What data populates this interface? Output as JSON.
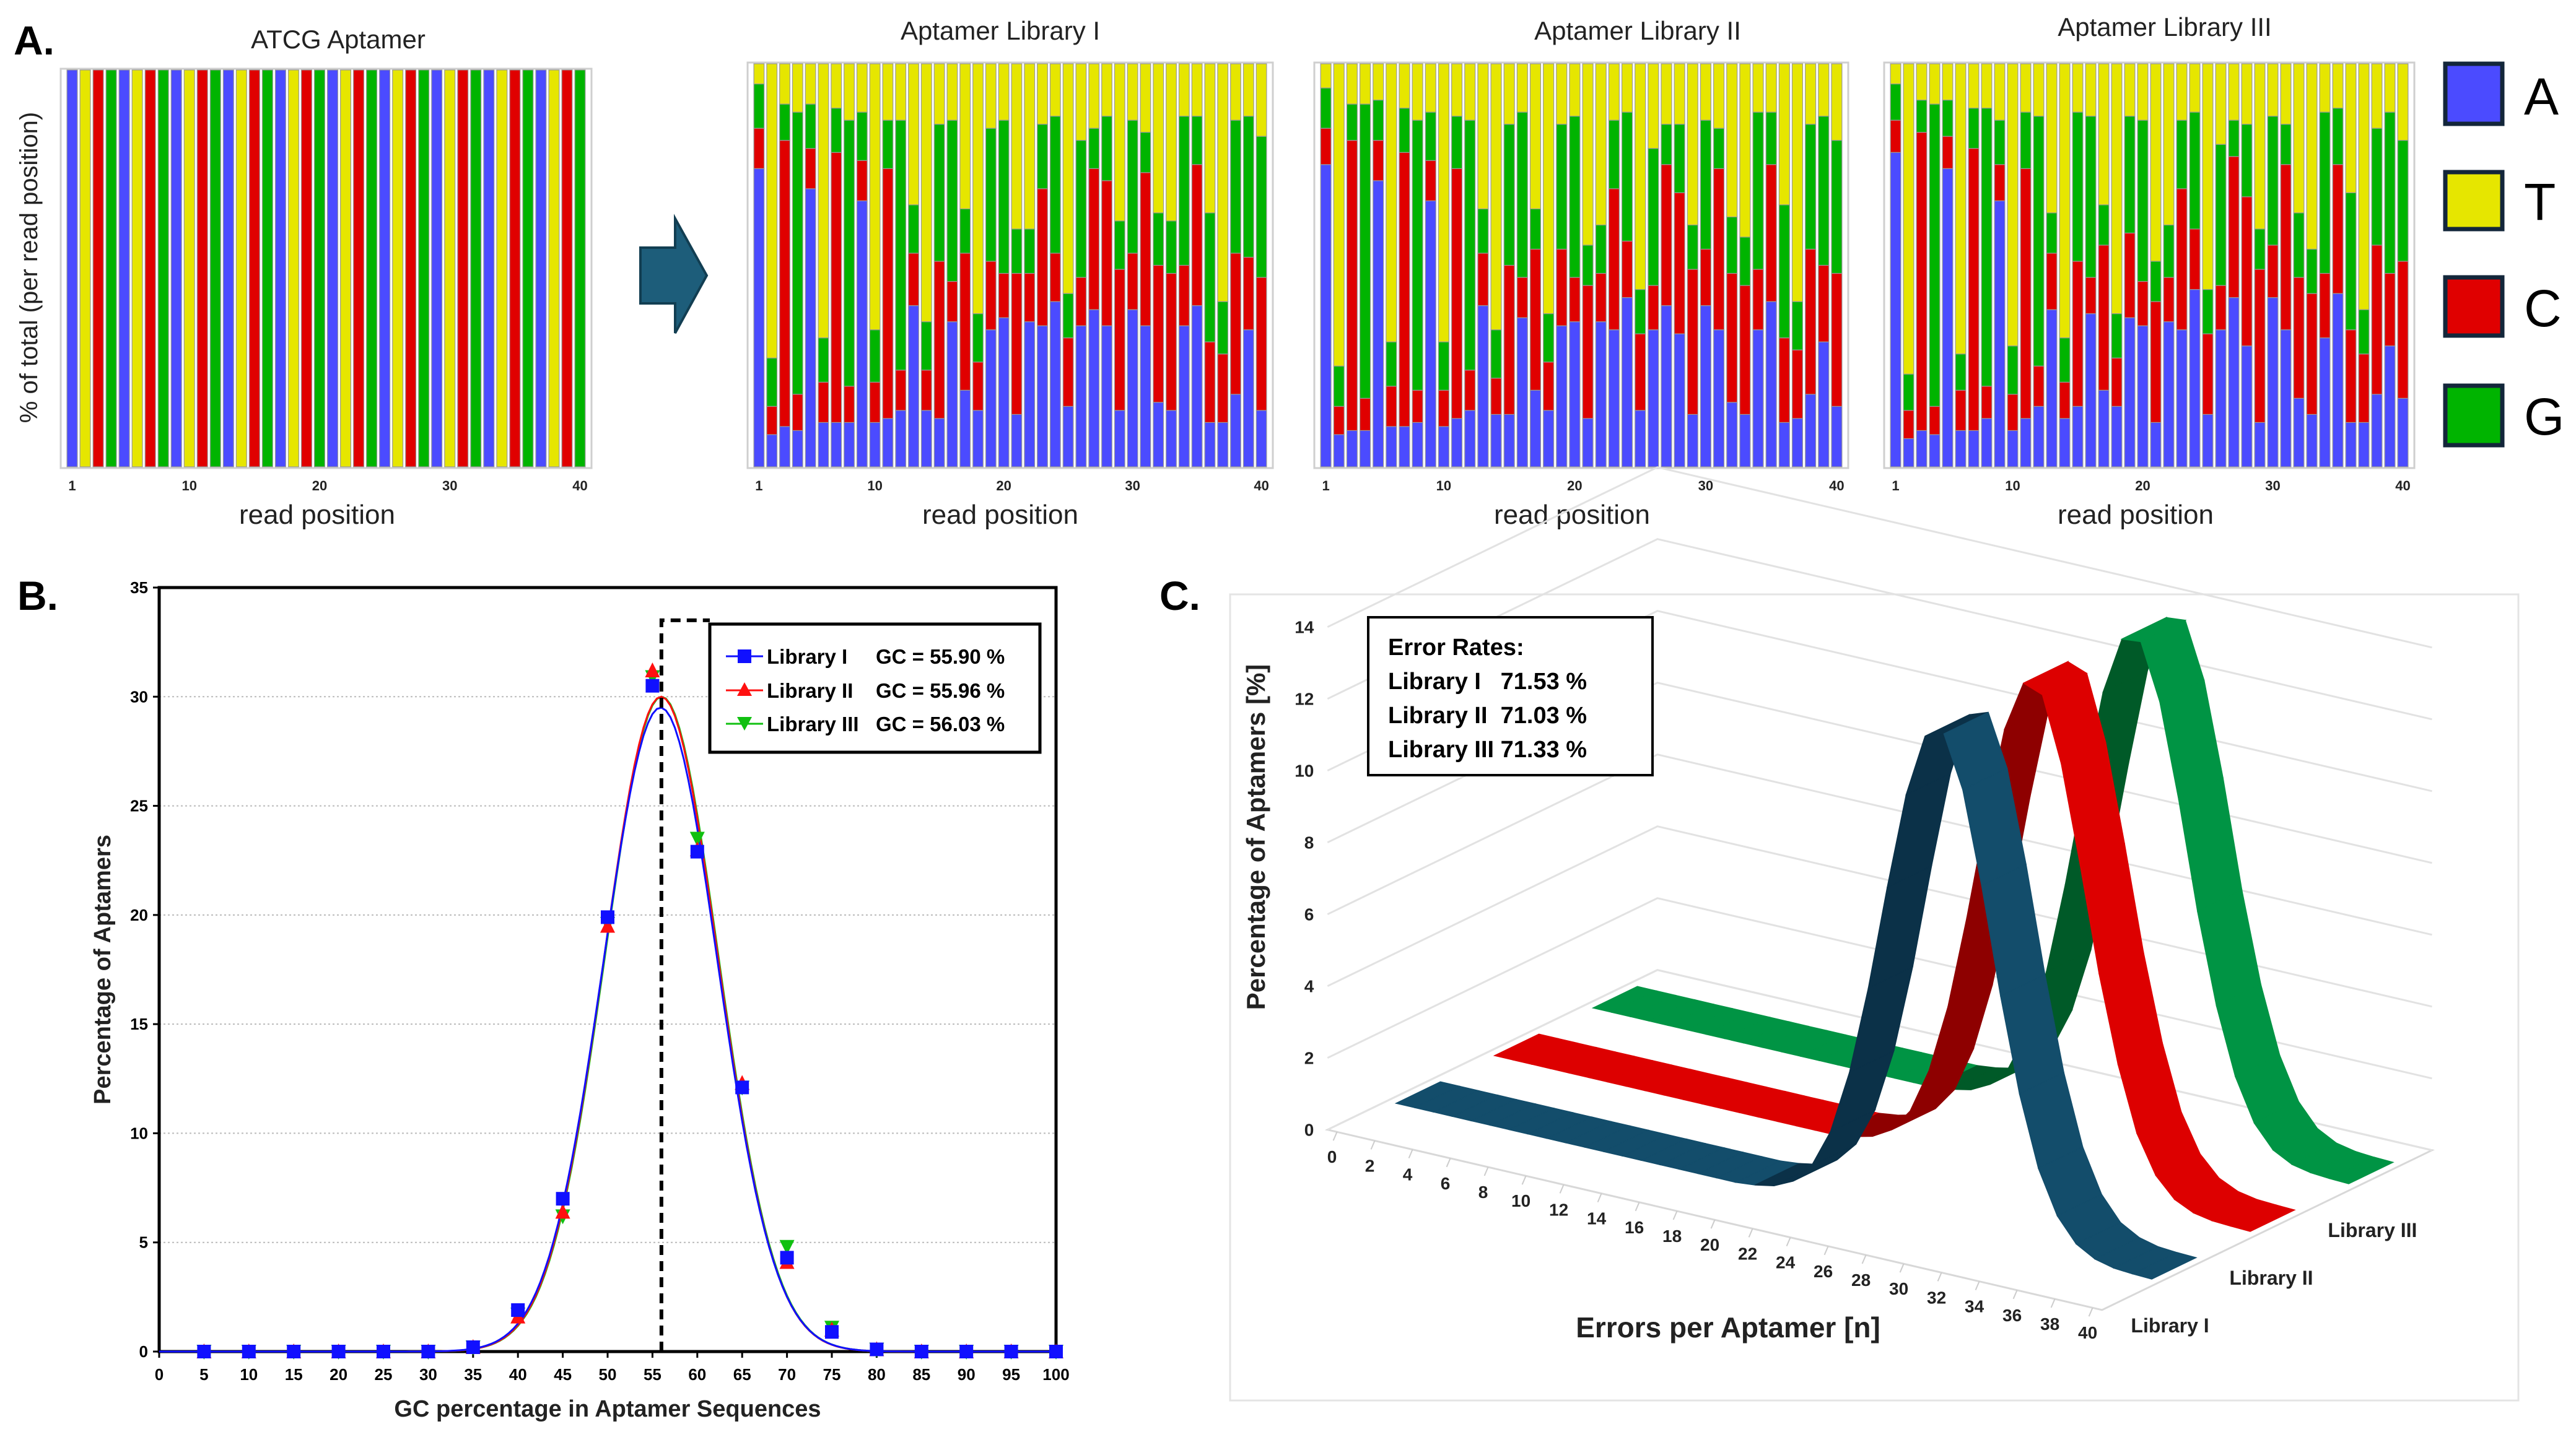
{
  "figure_labels": {
    "a": "A.",
    "b": "B.",
    "c": "C."
  },
  "base_colors": {
    "A": "#4b4bff",
    "T": "#e6e600",
    "C": "#e00000",
    "G": "#00b400"
  },
  "legend_a": [
    "A",
    "T",
    "C",
    "G"
  ],
  "chart_data": [
    {
      "type": "bar",
      "stacked": true,
      "title": "ATCG Aptamer",
      "xlabel": "read position",
      "ylabel": "% of total (per read position)",
      "xticks": [
        1,
        10,
        20,
        30,
        40
      ],
      "stack_order": [
        "A",
        "C",
        "G",
        "T"
      ],
      "series": {
        "A": [
          1,
          0,
          0,
          0,
          1,
          0,
          0,
          0,
          1,
          0,
          0,
          0,
          1,
          0,
          0,
          0,
          1,
          0,
          0,
          0,
          1,
          0,
          0,
          0,
          1,
          0,
          0,
          0,
          1,
          0,
          0,
          0,
          1,
          0,
          0,
          0,
          1,
          0,
          0,
          0
        ],
        "T": [
          0,
          1,
          0,
          0,
          0,
          1,
          0,
          0,
          0,
          1,
          0,
          0,
          0,
          1,
          0,
          0,
          0,
          1,
          0,
          0,
          0,
          1,
          0,
          0,
          0,
          1,
          0,
          0,
          0,
          1,
          0,
          0,
          0,
          1,
          0,
          0,
          0,
          1,
          0,
          0
        ],
        "C": [
          0,
          0,
          1,
          0,
          0,
          0,
          1,
          0,
          0,
          0,
          1,
          0,
          0,
          0,
          1,
          0,
          0,
          0,
          1,
          0,
          0,
          0,
          1,
          0,
          0,
          0,
          1,
          0,
          0,
          0,
          1,
          0,
          0,
          0,
          1,
          0,
          0,
          0,
          1,
          0
        ],
        "G": [
          0,
          0,
          0,
          1,
          0,
          0,
          0,
          1,
          0,
          0,
          0,
          1,
          0,
          0,
          0,
          1,
          0,
          0,
          0,
          1,
          0,
          0,
          0,
          1,
          0,
          0,
          0,
          1,
          0,
          0,
          0,
          1,
          0,
          0,
          0,
          1,
          0,
          0,
          0,
          1
        ]
      }
    },
    {
      "type": "bar",
      "stacked": true,
      "title": "Aptamer Library I",
      "xlabel": "read position",
      "xticks": [
        1,
        10,
        20,
        30,
        40
      ],
      "unit": "%",
      "stack_order": [
        "A",
        "C",
        "G",
        "T"
      ],
      "series": {
        "A": [
          74,
          8,
          10,
          9,
          69,
          11,
          11,
          11,
          66,
          11,
          12,
          14,
          40,
          14,
          12,
          36,
          19,
          14,
          34,
          37,
          13,
          36,
          35,
          41,
          15,
          35,
          39,
          35,
          14,
          39,
          35,
          16,
          14,
          35,
          40,
          11,
          11,
          18,
          34,
          14
        ],
        "C": [
          10,
          7,
          71,
          9,
          10,
          10,
          67,
          9,
          10,
          10,
          62,
          10,
          13,
          10,
          39,
          10,
          34,
          12,
          17,
          11,
          35,
          12,
          34,
          12,
          17,
          12,
          35,
          36,
          35,
          14,
          38,
          34,
          34,
          15,
          35,
          20,
          17,
          35,
          18,
          33
        ],
        "G": [
          11,
          12,
          9,
          70,
          11,
          11,
          11,
          66,
          12,
          13,
          12,
          62,
          12,
          12,
          34,
          40,
          11,
          12,
          33,
          38,
          11,
          11,
          16,
          34,
          11,
          34,
          10,
          16,
          12,
          33,
          10,
          13,
          13,
          37,
          12,
          32,
          13,
          33,
          35,
          35
        ],
        "T": [
          5,
          73,
          10,
          12,
          10,
          68,
          11,
          14,
          12,
          66,
          14,
          14,
          35,
          64,
          15,
          14,
          36,
          62,
          16,
          14,
          41,
          41,
          15,
          13,
          57,
          19,
          16,
          13,
          39,
          14,
          17,
          37,
          39,
          13,
          13,
          37,
          59,
          14,
          13,
          18
        ]
      }
    },
    {
      "type": "bar",
      "stacked": true,
      "title": "Aptamer Library II",
      "xlabel": "read position",
      "xticks": [
        1,
        10,
        20,
        30,
        40
      ],
      "unit": "%",
      "stack_order": [
        "A",
        "C",
        "G",
        "T"
      ],
      "series": {
        "A": [
          75,
          8,
          9,
          9,
          71,
          10,
          10,
          11,
          66,
          10,
          12,
          14,
          40,
          13,
          13,
          37,
          19,
          14,
          35,
          36,
          12,
          36,
          34,
          42,
          14,
          34,
          40,
          33,
          13,
          40,
          34,
          16,
          13,
          34,
          41,
          11,
          12,
          18,
          31,
          15
        ],
        "C": [
          9,
          7,
          72,
          8,
          10,
          10,
          68,
          8,
          10,
          9,
          62,
          10,
          13,
          9,
          37,
          10,
          35,
          12,
          19,
          11,
          33,
          12,
          35,
          14,
          19,
          11,
          35,
          35,
          36,
          14,
          40,
          32,
          32,
          15,
          34,
          21,
          17,
          36,
          19,
          33
        ],
        "G": [
          10,
          10,
          9,
          73,
          10,
          11,
          11,
          67,
          12,
          12,
          13,
          62,
          11,
          12,
          35,
          41,
          10,
          12,
          31,
          40,
          10,
          12,
          17,
          32,
          11,
          34,
          10,
          17,
          11,
          32,
          10,
          14,
          12,
          39,
          13,
          33,
          12,
          31,
          37,
          33
        ],
        "T": [
          6,
          75,
          10,
          10,
          9,
          69,
          11,
          14,
          12,
          69,
          13,
          14,
          36,
          66,
          15,
          12,
          36,
          62,
          15,
          13,
          45,
          40,
          14,
          12,
          56,
          21,
          15,
          15,
          40,
          14,
          16,
          38,
          43,
          12,
          12,
          35,
          59,
          15,
          13,
          19
        ]
      }
    },
    {
      "type": "bar",
      "stacked": true,
      "title": "Aptamer Library III",
      "xlabel": "read position",
      "xticks": [
        1,
        10,
        20,
        30,
        40
      ],
      "unit": "%",
      "stack_order": [
        "A",
        "C",
        "G",
        "T"
      ],
      "series": {
        "A": [
          78,
          7,
          9,
          8,
          74,
          9,
          9,
          12,
          66,
          9,
          12,
          15,
          39,
          12,
          15,
          38,
          19,
          15,
          37,
          35,
          11,
          36,
          34,
          44,
          13,
          34,
          42,
          30,
          11,
          42,
          34,
          17,
          13,
          32,
          43,
          11,
          11,
          18,
          30,
          17
        ],
        "C": [
          8,
          7,
          74,
          7,
          8,
          10,
          70,
          8,
          9,
          9,
          62,
          10,
          14,
          9,
          36,
          9,
          36,
          12,
          21,
          11,
          30,
          11,
          35,
          15,
          20,
          11,
          35,
          37,
          38,
          13,
          41,
          30,
          30,
          16,
          32,
          23,
          17,
          37,
          18,
          34
        ],
        "G": [
          9,
          9,
          8,
          75,
          9,
          9,
          10,
          69,
          11,
          12,
          14,
          62,
          10,
          11,
          37,
          40,
          10,
          11,
          29,
          40,
          10,
          13,
          17,
          29,
          11,
          35,
          9,
          18,
          10,
          32,
          10,
          16,
          11,
          40,
          14,
          34,
          11,
          29,
          40,
          30
        ],
        "T": [
          5,
          77,
          9,
          10,
          9,
          72,
          11,
          11,
          14,
          70,
          12,
          13,
          37,
          68,
          12,
          13,
          35,
          62,
          13,
          14,
          49,
          40,
          14,
          12,
          56,
          20,
          14,
          15,
          41,
          13,
          15,
          37,
          46,
          12,
          11,
          32,
          61,
          16,
          12,
          19
        ]
      }
    },
    {
      "type": "scatter",
      "xlabel": "GC percentage in Aptamer Sequences",
      "ylabel": "Percentage of Aptamers",
      "xlim": [
        0,
        100
      ],
      "ylim": [
        0,
        35
      ],
      "xticks": [
        0,
        5,
        10,
        15,
        20,
        25,
        30,
        35,
        40,
        45,
        50,
        55,
        60,
        65,
        70,
        75,
        80,
        85,
        90,
        95,
        100
      ],
      "yticks": [
        0,
        5,
        10,
        15,
        20,
        25,
        30,
        35
      ],
      "grid": true,
      "legend_position": "top-right",
      "mean_line_x": 56,
      "x": [
        5,
        10,
        15,
        20,
        25,
        30,
        35,
        40,
        45,
        50,
        55,
        60,
        65,
        70,
        75,
        80,
        85,
        90,
        95,
        100
      ],
      "series": [
        {
          "name": "Library I",
          "gc_label": "GC = 55.90 %",
          "color": "#1010ff",
          "marker": "square",
          "values": [
            0,
            0,
            0,
            0,
            0,
            0,
            0.2,
            1.9,
            7.0,
            19.9,
            30.5,
            22.9,
            12.1,
            4.3,
            0.9,
            0.1,
            0,
            0,
            0,
            0
          ],
          "fit": {
            "mean": 55.9,
            "amplitude": 29.5,
            "sd": 6.35
          }
        },
        {
          "name": "Library II",
          "gc_label": "GC = 55.96 %",
          "color": "#ff1010",
          "marker": "triangle-up",
          "values": [
            0,
            0,
            0,
            0,
            0,
            0,
            0.2,
            1.6,
            6.4,
            19.5,
            31.2,
            23.0,
            12.3,
            4.1,
            1.0,
            0.1,
            0,
            0,
            0,
            0
          ],
          "fit": {
            "mean": 55.96,
            "amplitude": 30.0,
            "sd": 6.3
          }
        },
        {
          "name": "Library III",
          "gc_label": "GC = 56.03 %",
          "color": "#10c010",
          "marker": "triangle-down",
          "values": [
            0,
            0,
            0,
            0,
            0,
            0,
            0.2,
            1.7,
            6.2,
            19.6,
            30.9,
            23.5,
            12.1,
            4.8,
            1.1,
            0.1,
            0,
            0,
            0,
            0
          ],
          "fit": {
            "mean": 56.03,
            "amplitude": 30.0,
            "sd": 6.3
          }
        }
      ]
    },
    {
      "type": "area",
      "variant": "3d-ribbon",
      "xlabel": "Errors per Aptamer [n]",
      "ylabel": "Percentage of Aptamers [%]",
      "xlim": [
        0,
        40
      ],
      "ylim": [
        0,
        14
      ],
      "xticks": [
        0,
        2,
        4,
        6,
        8,
        10,
        12,
        14,
        16,
        18,
        20,
        22,
        24,
        26,
        28,
        30,
        32,
        34,
        36,
        38,
        40
      ],
      "yticks": [
        0,
        2,
        4,
        6,
        8,
        10,
        12,
        14
      ],
      "annotation": {
        "title": "Error Rates:",
        "lines": [
          "Library I   71.53 %",
          "Library II  71.03 %",
          "Library III 71.33 %"
        ]
      },
      "x": [
        0,
        1,
        2,
        3,
        4,
        5,
        6,
        7,
        8,
        9,
        10,
        11,
        12,
        13,
        14,
        15,
        16,
        17,
        18,
        19,
        20,
        21,
        22,
        23,
        24,
        25,
        26,
        27,
        28,
        29,
        30,
        31,
        32,
        33,
        34,
        35,
        36,
        37,
        38,
        39,
        40
      ],
      "series": [
        {
          "name": "Library I",
          "color": "#134d6b",
          "dark": "#0b3148",
          "values": [
            0,
            0,
            0,
            0,
            0,
            0,
            0,
            0,
            0,
            0,
            0,
            0,
            0,
            0,
            0,
            0,
            0,
            0,
            0,
            0.05,
            0.15,
            0.4,
            0.96,
            2.03,
            3.8,
            6.27,
            9.2,
            11.9,
            13.65,
            13.84,
            12.4,
            9.85,
            6.9,
            4.3,
            2.35,
            1.15,
            0.49,
            0.19,
            0.06,
            0.02,
            0
          ]
        },
        {
          "name": "Library II",
          "color": "#dd0000",
          "dark": "#8e0000",
          "values": [
            0,
            0,
            0,
            0,
            0,
            0,
            0,
            0,
            0,
            0,
            0,
            0,
            0,
            0,
            0,
            0,
            0,
            0,
            0,
            0.07,
            0.2,
            0.5,
            1.15,
            2.4,
            4.3,
            6.9,
            9.8,
            12.4,
            13.8,
            13.6,
            11.8,
            9.1,
            6.2,
            3.8,
            2.0,
            0.95,
            0.4,
            0.15,
            0.05,
            0.02,
            0
          ]
        },
        {
          "name": "Library III",
          "color": "#009444",
          "dark": "#005a28",
          "values": [
            0,
            0,
            0,
            0,
            0,
            0,
            0,
            0,
            0,
            0,
            0,
            0,
            0,
            0,
            0,
            0,
            0,
            0,
            0,
            0.06,
            0.17,
            0.44,
            1.03,
            2.15,
            3.95,
            6.5,
            9.4,
            12.1,
            13.7,
            13.75,
            12.2,
            9.6,
            6.6,
            4.1,
            2.25,
            1.08,
            0.45,
            0.17,
            0.06,
            0.02,
            0
          ]
        }
      ]
    }
  ]
}
